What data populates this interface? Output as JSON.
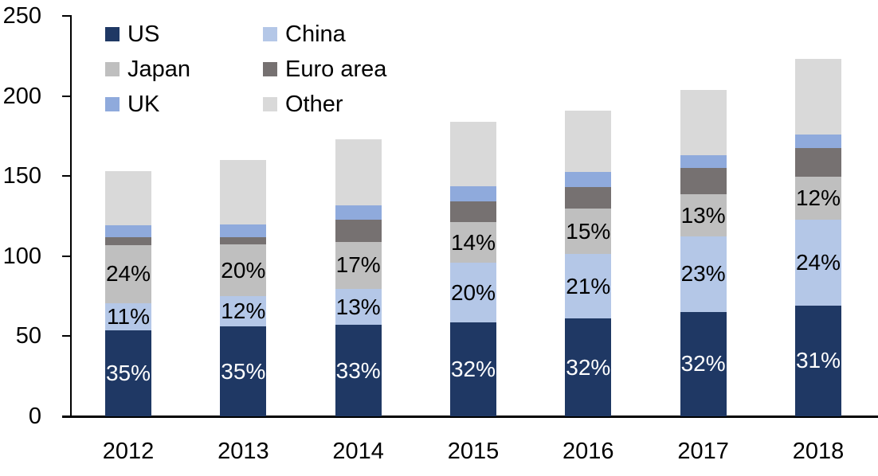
{
  "background": "#FFFFFF",
  "axis_color": "#000000",
  "chart_data": {
    "type": "bar",
    "stacked": true,
    "title": "",
    "xlabel": "",
    "ylabel": "",
    "grid": false,
    "legend_position": "top-left",
    "ylim": [
      0,
      250
    ],
    "y_ticks": [
      0,
      50,
      100,
      150,
      200,
      250
    ],
    "categories": [
      "2012",
      "2013",
      "2014",
      "2015",
      "2016",
      "2017",
      "2018"
    ],
    "totals": [
      153,
      160,
      173,
      184,
      191,
      204,
      223
    ],
    "series": [
      {
        "name": "US",
        "color": "#1F3864",
        "pct": [
          35,
          35,
          33,
          32,
          32,
          32,
          31
        ],
        "labels": [
          "35%",
          "35%",
          "33%",
          "32%",
          "32%",
          "32%",
          "31%"
        ],
        "label_color": "#FFFFFF"
      },
      {
        "name": "China",
        "color": "#B4C7E7",
        "pct": [
          11,
          12,
          13,
          20,
          21,
          23,
          24
        ],
        "labels": [
          "11%",
          "12%",
          "13%",
          "20%",
          "21%",
          "23%",
          "24%"
        ],
        "label_color": "#000000"
      },
      {
        "name": "Japan",
        "color": "#BFBFBF",
        "pct": [
          24,
          20,
          17,
          14,
          15,
          13,
          12
        ],
        "labels": [
          "24%",
          "20%",
          "17%",
          "14%",
          "15%",
          "13%",
          "12%"
        ],
        "label_color": "#000000"
      },
      {
        "name": "Euro area",
        "color": "#767171",
        "pct": [
          3,
          3,
          8,
          7,
          7,
          8,
          8
        ],
        "labels": null,
        "label_color": null
      },
      {
        "name": "UK",
        "color": "#8FAADC",
        "pct": [
          5,
          5,
          5,
          5,
          5,
          4,
          4
        ],
        "labels": null,
        "label_color": null
      },
      {
        "name": "Other",
        "color": "#D9D9D9",
        "pct": [
          22,
          25,
          24,
          22,
          20,
          20,
          21
        ],
        "labels": null,
        "label_color": null
      }
    ]
  }
}
